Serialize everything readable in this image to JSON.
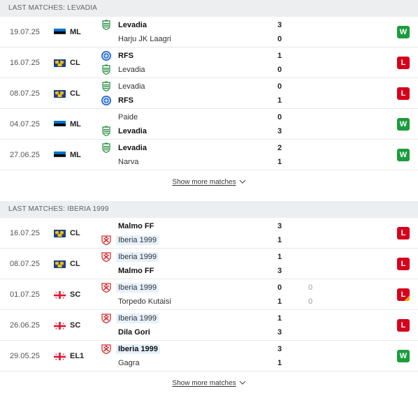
{
  "sections": [
    {
      "title": "LAST MATCHES: LEVADIA",
      "show_more": "Show more matches",
      "matches": [
        {
          "date": "19.07.25",
          "flag": "est",
          "comp": "ML",
          "home": {
            "name": "Levadia",
            "logo": "levadia",
            "winner": true,
            "hl": false,
            "score": "3"
          },
          "away": {
            "name": "Harju JK Laagri",
            "logo": "",
            "winner": false,
            "hl": false,
            "score": "0"
          },
          "result": "W",
          "badge_corner": false
        },
        {
          "date": "16.07.25",
          "flag": "uefa",
          "comp": "CL",
          "home": {
            "name": "RFS",
            "logo": "rfs",
            "winner": true,
            "hl": false,
            "score": "1"
          },
          "away": {
            "name": "Levadia",
            "logo": "levadia",
            "winner": false,
            "hl": false,
            "score": "0"
          },
          "result": "L",
          "badge_corner": false
        },
        {
          "date": "08.07.25",
          "flag": "uefa",
          "comp": "CL",
          "home": {
            "name": "Levadia",
            "logo": "levadia",
            "winner": false,
            "hl": false,
            "score": "0"
          },
          "away": {
            "name": "RFS",
            "logo": "rfs",
            "winner": true,
            "hl": false,
            "score": "1"
          },
          "result": "L",
          "badge_corner": false
        },
        {
          "date": "04.07.25",
          "flag": "est",
          "comp": "ML",
          "home": {
            "name": "Paide",
            "logo": "",
            "winner": false,
            "hl": false,
            "score": "0"
          },
          "away": {
            "name": "Levadia",
            "logo": "levadia",
            "winner": true,
            "hl": false,
            "score": "3"
          },
          "result": "W",
          "badge_corner": false
        },
        {
          "date": "27.06.25",
          "flag": "est",
          "comp": "ML",
          "home": {
            "name": "Levadia",
            "logo": "levadia",
            "winner": true,
            "hl": false,
            "score": "2"
          },
          "away": {
            "name": "Narva",
            "logo": "",
            "winner": false,
            "hl": false,
            "score": "1"
          },
          "result": "W",
          "badge_corner": false
        }
      ]
    },
    {
      "title": "LAST MATCHES: IBERIA 1999",
      "show_more": "Show more matches",
      "matches": [
        {
          "date": "16.07.25",
          "flag": "uefa",
          "comp": "CL",
          "home": {
            "name": "Malmo FF",
            "logo": "",
            "winner": true,
            "hl": false,
            "score": "3"
          },
          "away": {
            "name": "Iberia 1999",
            "logo": "iberia",
            "winner": false,
            "hl": true,
            "score": "1"
          },
          "result": "L",
          "badge_corner": false
        },
        {
          "date": "08.07.25",
          "flag": "uefa",
          "comp": "CL",
          "home": {
            "name": "Iberia 1999",
            "logo": "iberia",
            "winner": false,
            "hl": true,
            "score": "1"
          },
          "away": {
            "name": "Malmo FF",
            "logo": "",
            "winner": true,
            "hl": false,
            "score": "3"
          },
          "result": "L",
          "badge_corner": false
        },
        {
          "date": "01.07.25",
          "flag": "geo",
          "comp": "SC",
          "home": {
            "name": "Iberia 1999",
            "logo": "iberia",
            "winner": false,
            "hl": true,
            "score": "0",
            "pen": "0"
          },
          "away": {
            "name": "Torpedo Kutaisi",
            "logo": "",
            "winner": false,
            "hl": false,
            "score": "1",
            "pen": "0"
          },
          "result": "L",
          "badge_corner": true
        },
        {
          "date": "26.06.25",
          "flag": "geo",
          "comp": "SC",
          "home": {
            "name": "Iberia 1999",
            "logo": "iberia",
            "winner": false,
            "hl": true,
            "score": "1"
          },
          "away": {
            "name": "Dila Gori",
            "logo": "",
            "winner": true,
            "hl": false,
            "score": "3"
          },
          "result": "L",
          "badge_corner": false
        },
        {
          "date": "29.05.25",
          "flag": "geo",
          "comp": "EL1",
          "home": {
            "name": "Iberia 1999",
            "logo": "iberia",
            "winner": true,
            "hl": true,
            "score": "3"
          },
          "away": {
            "name": "Gagra",
            "logo": "",
            "winner": false,
            "hl": false,
            "score": "1"
          },
          "result": "W",
          "badge_corner": false
        }
      ]
    }
  ],
  "colors": {
    "win": "#1a9c3c",
    "loss": "#d6001c",
    "header_bg": "#eceeef",
    "highlight": "#e6f1fb"
  },
  "icons": {
    "flag_est": "estonia-flag-icon",
    "flag_uefa": "europe-flag-icon",
    "flag_geo": "georgia-flag-icon",
    "logo_levadia": "levadia-logo-icon",
    "logo_rfs": "rfs-logo-icon",
    "logo_iberia": "iberia-logo-icon",
    "chevron": "chevron-down-icon"
  }
}
